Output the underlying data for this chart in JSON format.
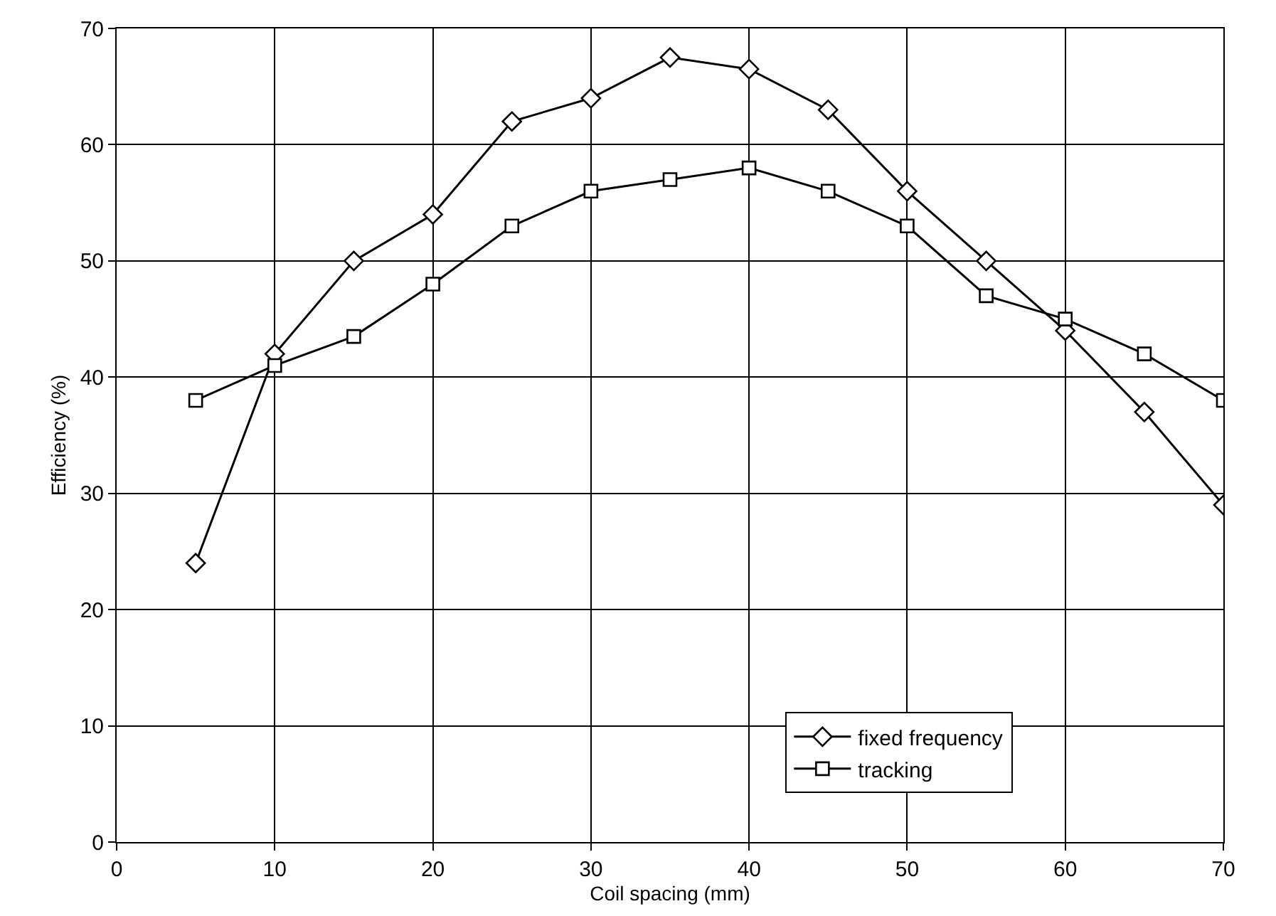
{
  "chart_data": {
    "type": "line",
    "xlabel": "Coil spacing (mm)",
    "ylabel": "Efficiency (%)",
    "x": [
      5,
      10,
      15,
      20,
      25,
      30,
      35,
      40,
      45,
      50,
      55,
      60,
      65,
      70
    ],
    "series": [
      {
        "name": "fixed frequency",
        "color": "#000000",
        "marker": "diamond",
        "values": [
          24,
          42,
          50,
          54,
          62,
          64,
          67.5,
          66.5,
          63,
          56,
          50,
          44,
          37,
          29
        ]
      },
      {
        "name": "tracking",
        "color": "#000000",
        "marker": "square",
        "values": [
          38,
          41,
          43.5,
          48,
          53,
          56,
          57,
          58,
          56,
          53,
          47,
          45,
          42,
          38
        ]
      }
    ],
    "xlim": [
      0,
      70
    ],
    "xticks": [
      0,
      10,
      20,
      30,
      40,
      50,
      60,
      70
    ],
    "ylim": [
      0,
      70
    ],
    "yticks": [
      0,
      10,
      20,
      30,
      40,
      50,
      60,
      70
    ],
    "grid": true,
    "legend": "bottom right",
    "line_style": "solid"
  }
}
